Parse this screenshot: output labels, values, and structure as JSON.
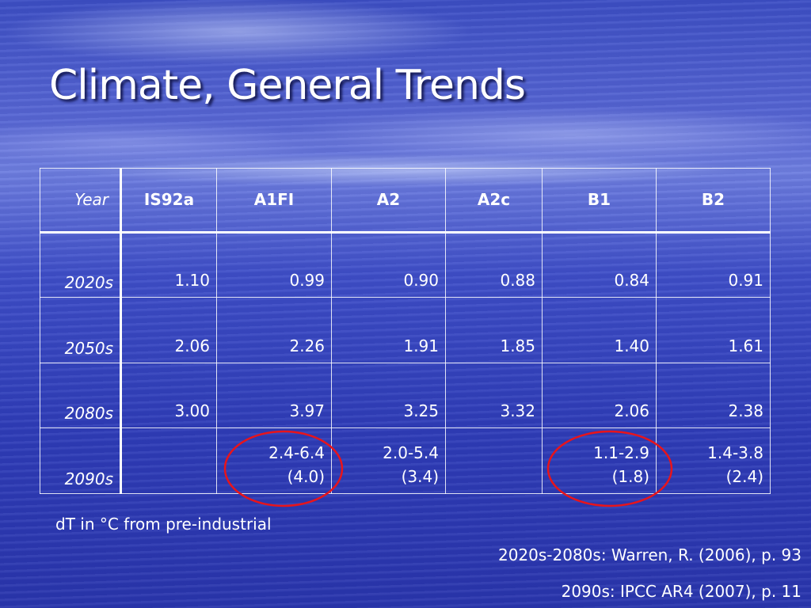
{
  "title": "Climate, General Trends",
  "table": {
    "headers": [
      "Year",
      "IS92a",
      "A1FI",
      "A2",
      "A2c",
      "B1",
      "B2"
    ],
    "rows": [
      {
        "year": "2020s",
        "cells": [
          [
            "1.10"
          ],
          [
            "0.99"
          ],
          [
            "0.90"
          ],
          [
            "0.88"
          ],
          [
            "0.84"
          ],
          [
            "0.91"
          ]
        ]
      },
      {
        "year": "2050s",
        "cells": [
          [
            "2.06"
          ],
          [
            "2.26"
          ],
          [
            "1.91"
          ],
          [
            "1.85"
          ],
          [
            "1.40"
          ],
          [
            "1.61"
          ]
        ]
      },
      {
        "year": "2080s",
        "cells": [
          [
            "3.00"
          ],
          [
            "3.97"
          ],
          [
            "3.25"
          ],
          [
            "3.32"
          ],
          [
            "2.06"
          ],
          [
            "2.38"
          ]
        ]
      },
      {
        "year": "2090s",
        "cells": [
          [],
          [
            "2.4-6.4",
            "(4.0)"
          ],
          [
            "2.0-5.4",
            "(3.4)"
          ],
          [],
          [
            "1.1-2.9",
            "(1.8)"
          ],
          [
            "1.4-3.8",
            "(2.4)"
          ]
        ]
      }
    ]
  },
  "notes": {
    "units": "dT in °C from pre-industrial",
    "source1": "2020s-2080s: Warren, R. (2006), p. 93",
    "source2": "2090s: IPCC AR4 (2007), p. 11"
  },
  "colors": {
    "highlight": "#e8141b"
  }
}
